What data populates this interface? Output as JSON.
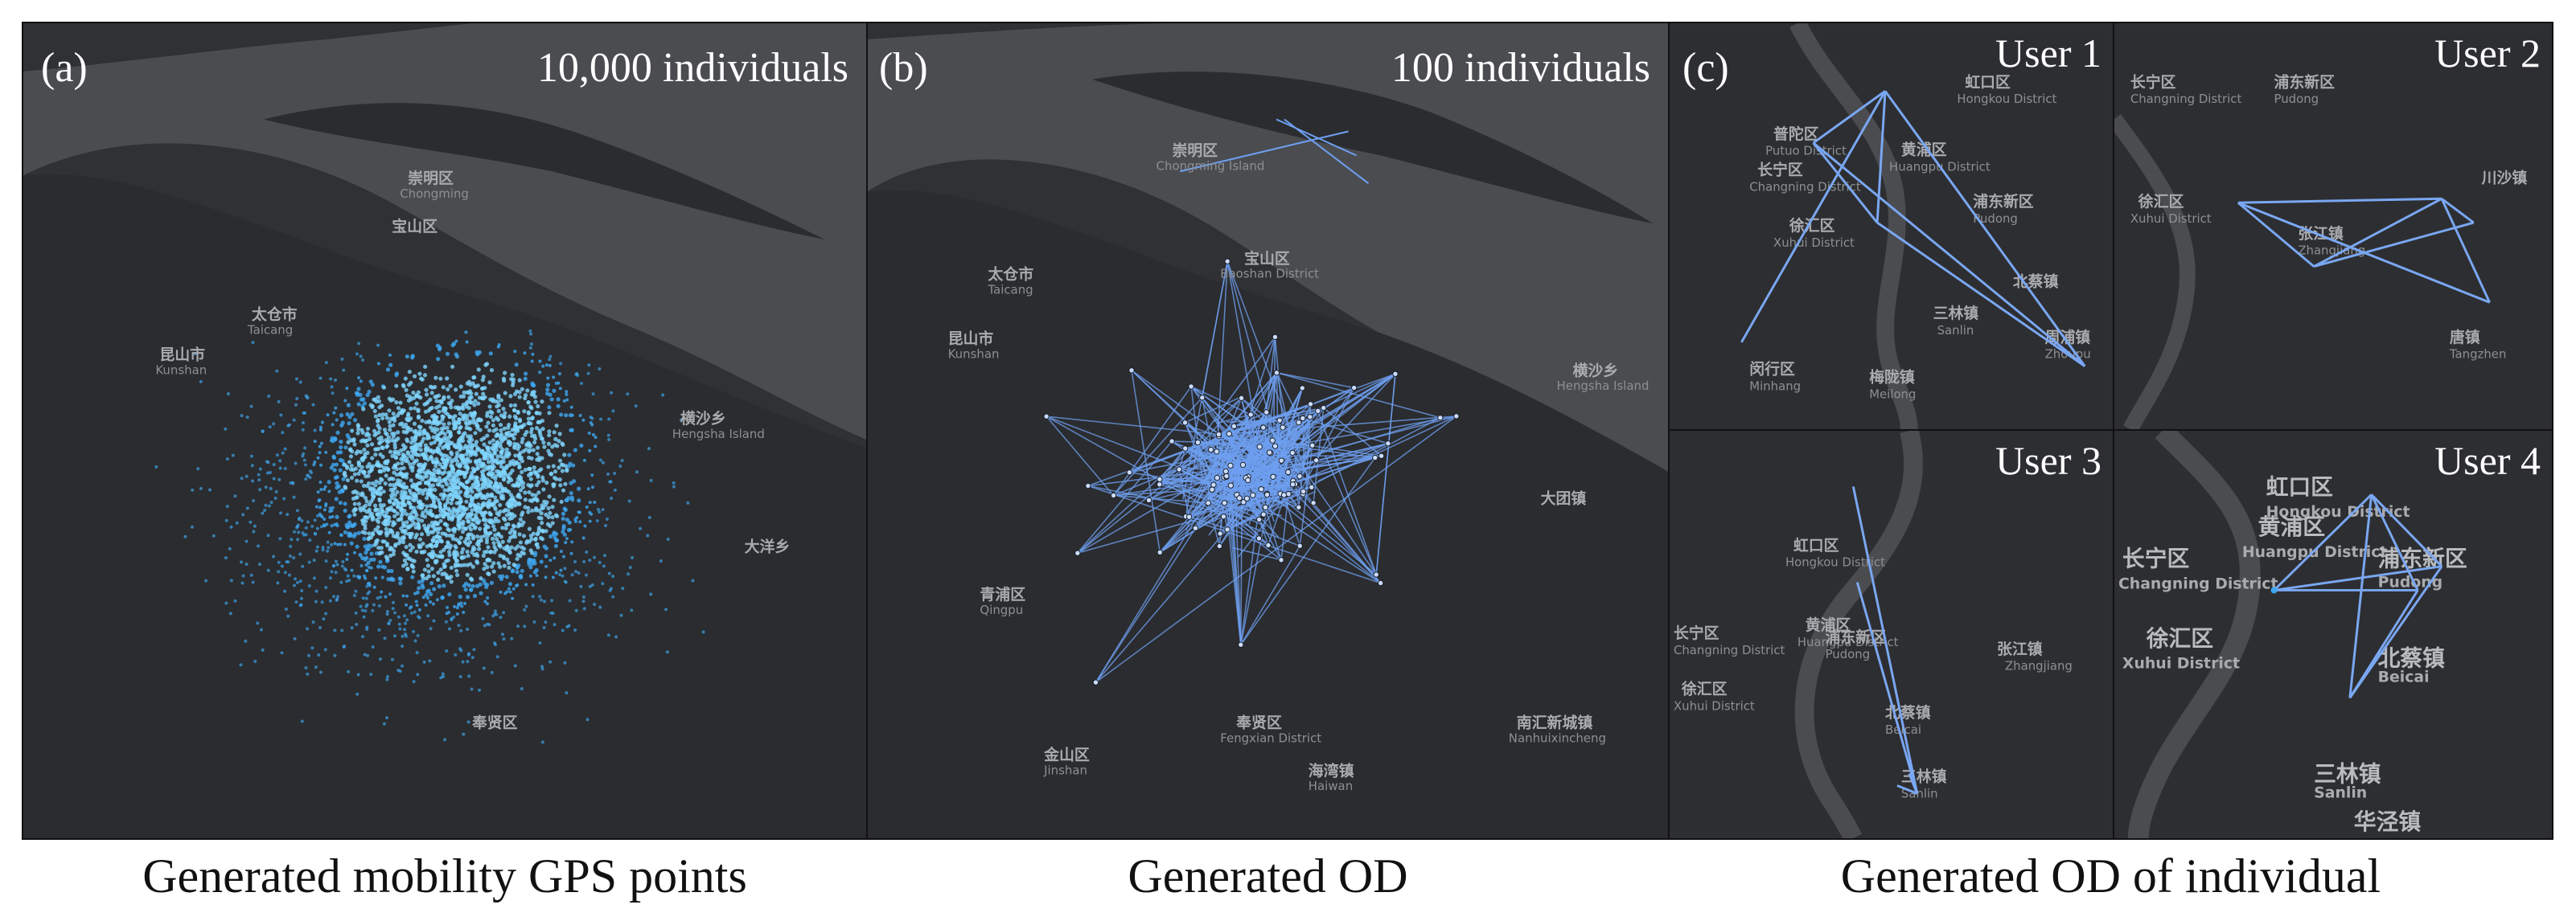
{
  "panels": {
    "a": {
      "label": "(a)",
      "count_label": "10,000 individuals",
      "caption": "Generated mobility GPS points"
    },
    "b": {
      "label": "(b)",
      "count_label": "100 individuals",
      "caption": "Generated OD"
    },
    "c": {
      "label": "(c)",
      "caption": "Generated OD of individual",
      "users": [
        "User 1",
        "User 2",
        "User 3",
        "User 4"
      ]
    }
  },
  "map_labels": {
    "a": [
      "太仓市",
      "Taicang",
      "昆山市",
      "Kunshan",
      "崇明区",
      "Chongming",
      "宝山区",
      "横沙乡",
      "Hengsha Island",
      "大洋乡",
      "奉贤区"
    ],
    "b": [
      "崇明区",
      "Chongming Island",
      "宝山区",
      "Baoshan District",
      "太仓市",
      "Taicang",
      "昆山市",
      "Kunshan",
      "横沙乡",
      "Hengsha Island",
      "大团镇",
      "青浦区",
      "Qingpu",
      "奉贤区",
      "Fengxian District",
      "金山区",
      "Jinshan",
      "海湾镇",
      "Haiwan",
      "南汇新城镇",
      "Nanhuixincheng"
    ],
    "c1": [
      "虹口区",
      "Hongkou District",
      "普陀区",
      "Putuo District",
      "长宁区",
      "Changning District",
      "黄浦区",
      "Huangpu District",
      "浦东新区",
      "Pudong",
      "徐汇区",
      "Xuhui District",
      "闵行区",
      "Minhang",
      "三林镇",
      "Sanlin",
      "北蔡镇",
      "周浦镇",
      "Zhoupu",
      "梅陇镇",
      "Meilong"
    ],
    "c2": [
      "长宁区",
      "Changning District",
      "浦东新区",
      "Pudong",
      "徐汇区",
      "Xuhui District",
      "张江镇",
      "Zhangjiang",
      "唐镇",
      "Tangzhen",
      "川沙镇"
    ],
    "c3": [
      "虹口区",
      "Hongkou District",
      "黄浦区",
      "Huangpu District",
      "浦东新区",
      "Pudong",
      "长宁区",
      "Changning District",
      "徐汇区",
      "Xuhui District",
      "北蔡镇",
      "Beicai",
      "三林镇",
      "Sanlin",
      "张江镇",
      "Zhangjiang"
    ],
    "c4": [
      "虹口区",
      "Hongkou District",
      "长宁区",
      "Changning District",
      "黄浦区",
      "Huangpu District",
      "浦东新区",
      "Pudong",
      "徐汇区",
      "Xuhui District",
      "北蔡镇",
      "Beicai",
      "三林镇",
      "Sanlin",
      "华泾镇"
    ]
  },
  "colors": {
    "map_bg": "#2f3033",
    "water": "#4b4d51",
    "land_dark": "#26272a",
    "point": "#3ea9f2",
    "od_line": "#6e9ff0",
    "text": "#ffffff"
  }
}
